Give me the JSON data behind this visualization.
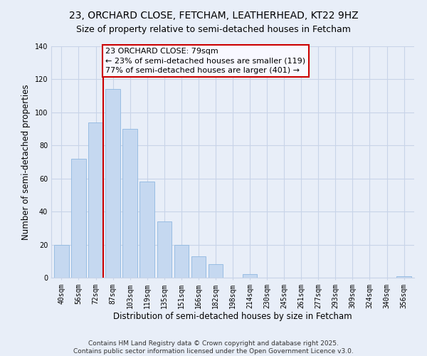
{
  "title": "23, ORCHARD CLOSE, FETCHAM, LEATHERHEAD, KT22 9HZ",
  "subtitle": "Size of property relative to semi-detached houses in Fetcham",
  "xlabel": "Distribution of semi-detached houses by size in Fetcham",
  "ylabel": "Number of semi-detached properties",
  "bar_labels": [
    "40sqm",
    "56sqm",
    "72sqm",
    "87sqm",
    "103sqm",
    "119sqm",
    "135sqm",
    "151sqm",
    "166sqm",
    "182sqm",
    "198sqm",
    "214sqm",
    "230sqm",
    "245sqm",
    "261sqm",
    "277sqm",
    "293sqm",
    "309sqm",
    "324sqm",
    "340sqm",
    "356sqm"
  ],
  "bar_heights": [
    20,
    72,
    94,
    114,
    90,
    58,
    34,
    20,
    13,
    8,
    0,
    2,
    0,
    0,
    0,
    0,
    0,
    0,
    0,
    0,
    1
  ],
  "bar_color": "#c5d8f0",
  "bar_edge_color": "#8fb8e0",
  "vline_x_idx": 2,
  "vline_color": "#cc0000",
  "vline_label": "23 ORCHARD CLOSE: 79sqm",
  "annotation_smaller": "← 23% of semi-detached houses are smaller (119)",
  "annotation_larger": "77% of semi-detached houses are larger (401) →",
  "ylim": [
    0,
    140
  ],
  "yticks": [
    0,
    20,
    40,
    60,
    80,
    100,
    120,
    140
  ],
  "footer1": "Contains HM Land Registry data © Crown copyright and database right 2025.",
  "footer2": "Contains public sector information licensed under the Open Government Licence v3.0.",
  "bg_color": "#e8eef8",
  "grid_color": "#c8d4e8",
  "box_facecolor": "#f8f8ff",
  "box_edgecolor": "#cc0000",
  "title_fontsize": 10,
  "subtitle_fontsize": 9,
  "axis_label_fontsize": 8.5,
  "tick_fontsize": 7,
  "annotation_fontsize": 8,
  "footer_fontsize": 6.5
}
